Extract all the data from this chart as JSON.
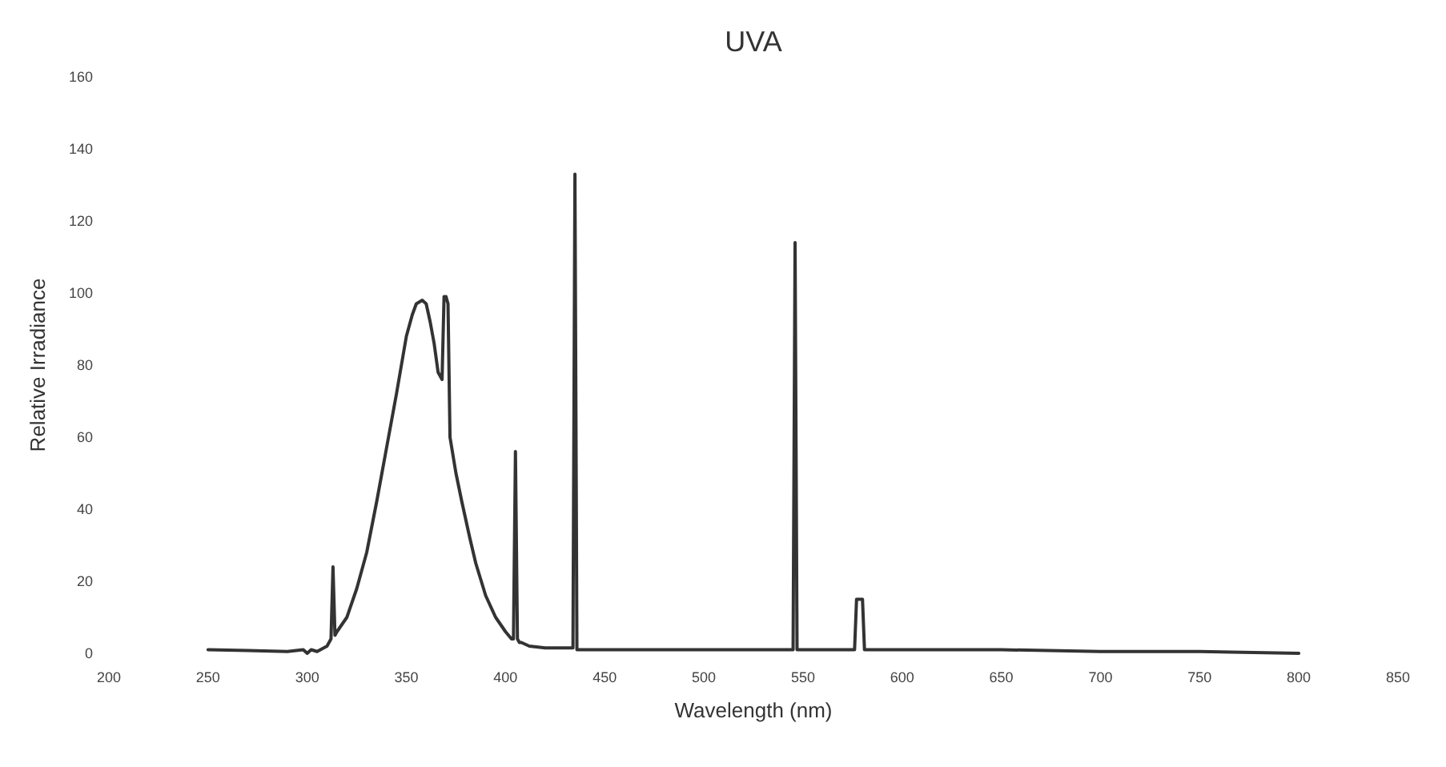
{
  "chart_data": {
    "type": "line",
    "title": "UVA",
    "xlabel": "Wavelength (nm)",
    "ylabel": "Relative Irradiance",
    "xlim": [
      200,
      850
    ],
    "xticks": [
      200,
      250,
      300,
      350,
      400,
      450,
      500,
      550,
      600,
      650,
      700,
      750,
      800,
      850
    ],
    "ylim": [
      0,
      160
    ],
    "yticks": [
      0,
      20,
      40,
      60,
      80,
      100,
      120,
      140,
      160
    ],
    "grid": false,
    "line_style": "solid",
    "series": [
      {
        "color": "#333333",
        "x": [
          250,
          270,
          290,
          298,
          300,
          302,
          305,
          310,
          312,
          313,
          314,
          315,
          320,
          325,
          330,
          335,
          340,
          345,
          350,
          353,
          355,
          358,
          360,
          362,
          364,
          366,
          368,
          369,
          370,
          371,
          372,
          375,
          378,
          382,
          385,
          390,
          395,
          400,
          403,
          404,
          405,
          406,
          407,
          408,
          412,
          420,
          430,
          434,
          435,
          436,
          437,
          438,
          445,
          480,
          520,
          544,
          545,
          546,
          547,
          548,
          560,
          575,
          576,
          577,
          580,
          581,
          582,
          600,
          650,
          700,
          750,
          800
        ],
        "values": [
          1,
          0.8,
          0.5,
          1,
          0,
          1,
          0.5,
          2,
          4,
          24,
          5,
          6,
          10,
          18,
          28,
          42,
          57,
          72,
          88,
          94,
          97,
          98,
          97,
          92,
          86,
          78,
          76,
          99,
          99,
          97,
          60,
          50,
          42,
          32,
          25,
          16,
          10,
          6,
          4,
          4,
          56,
          4,
          3,
          3,
          2,
          1.5,
          1.5,
          1.5,
          133,
          1,
          1,
          1,
          1,
          1,
          1,
          1,
          1,
          114,
          1,
          1,
          1,
          1,
          1,
          15,
          15,
          1,
          1,
          1,
          1,
          0.5,
          0.5,
          0
        ]
      }
    ]
  }
}
